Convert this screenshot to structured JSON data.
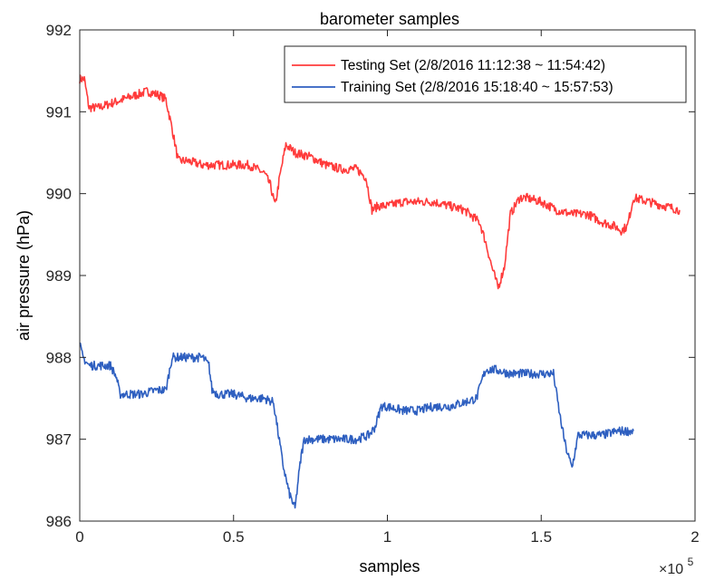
{
  "chart_data": {
    "type": "line",
    "title": "barometer samples",
    "xlabel": "samples",
    "ylabel": "air pressure (hPa)",
    "x_exponent_base": "×10",
    "x_exponent_power": "5",
    "xlim": [
      0,
      2
    ],
    "ylim": [
      986,
      992
    ],
    "xticks": [
      0,
      0.5,
      1,
      1.5,
      2
    ],
    "xtick_labels": [
      "0",
      "0.5",
      "1",
      "1.5",
      "2"
    ],
    "yticks": [
      986,
      987,
      988,
      989,
      990,
      991,
      992
    ],
    "ytick_labels": [
      "986",
      "987",
      "988",
      "989",
      "990",
      "991",
      "992"
    ],
    "grid": false,
    "legend_position": "top-right",
    "series": [
      {
        "name": "Testing Set (2/8/2016 11:12:38 ~ 11:54:42)",
        "color": "#ff3b3b",
        "x": [
          0,
          0.015,
          0.03,
          0.06,
          0.1,
          0.14,
          0.18,
          0.22,
          0.26,
          0.28,
          0.3,
          0.32,
          0.35,
          0.4,
          0.45,
          0.5,
          0.55,
          0.6,
          0.62,
          0.635,
          0.65,
          0.67,
          0.7,
          0.75,
          0.8,
          0.85,
          0.9,
          0.93,
          0.95,
          0.97,
          1.0,
          1.05,
          1.1,
          1.15,
          1.2,
          1.25,
          1.3,
          1.32,
          1.34,
          1.36,
          1.38,
          1.4,
          1.43,
          1.45,
          1.5,
          1.55,
          1.6,
          1.65,
          1.7,
          1.74,
          1.76,
          1.78,
          1.8,
          1.85,
          1.9,
          1.95
        ],
        "y": [
          991.4,
          991.4,
          991.05,
          991.05,
          991.1,
          991.15,
          991.2,
          991.25,
          991.2,
          991.15,
          990.8,
          990.4,
          990.4,
          990.35,
          990.35,
          990.35,
          990.35,
          990.25,
          990.1,
          989.85,
          990.2,
          990.6,
          990.5,
          990.45,
          990.35,
          990.3,
          990.3,
          990.2,
          989.8,
          989.85,
          989.85,
          989.9,
          989.9,
          989.9,
          989.85,
          989.8,
          989.65,
          989.4,
          989.1,
          988.85,
          989.1,
          989.75,
          989.95,
          989.95,
          989.9,
          989.8,
          989.75,
          989.75,
          989.65,
          989.6,
          989.55,
          989.6,
          989.95,
          989.9,
          989.85,
          989.8
        ]
      },
      {
        "name": "Training Set (2/8/2016 15:18:40 ~ 15:57:53)",
        "color": "#2e5fc0",
        "x": [
          0,
          0.01,
          0.03,
          0.06,
          0.1,
          0.12,
          0.13,
          0.15,
          0.2,
          0.25,
          0.28,
          0.29,
          0.3,
          0.35,
          0.4,
          0.42,
          0.43,
          0.45,
          0.5,
          0.55,
          0.6,
          0.63,
          0.64,
          0.66,
          0.68,
          0.7,
          0.71,
          0.72,
          0.73,
          0.75,
          0.8,
          0.85,
          0.9,
          0.94,
          0.96,
          0.98,
          1.0,
          1.05,
          1.1,
          1.15,
          1.2,
          1.25,
          1.29,
          1.31,
          1.32,
          1.35,
          1.4,
          1.45,
          1.5,
          1.54,
          1.56,
          1.58,
          1.6,
          1.62,
          1.65,
          1.7,
          1.75,
          1.8
        ],
        "y": [
          988.15,
          988.0,
          987.9,
          987.9,
          987.9,
          987.75,
          987.55,
          987.55,
          987.55,
          987.6,
          987.6,
          987.8,
          988.0,
          988.0,
          988.0,
          987.9,
          987.6,
          987.55,
          987.55,
          987.5,
          987.5,
          987.45,
          987.2,
          986.7,
          986.35,
          986.15,
          986.5,
          986.8,
          987.0,
          987.0,
          987.0,
          987.0,
          987.0,
          987.05,
          987.15,
          987.4,
          987.4,
          987.35,
          987.35,
          987.4,
          987.4,
          987.45,
          987.5,
          987.75,
          987.85,
          987.85,
          987.8,
          987.8,
          987.8,
          987.8,
          987.3,
          986.9,
          986.65,
          987.05,
          987.05,
          987.05,
          987.1,
          987.1
        ]
      }
    ]
  }
}
